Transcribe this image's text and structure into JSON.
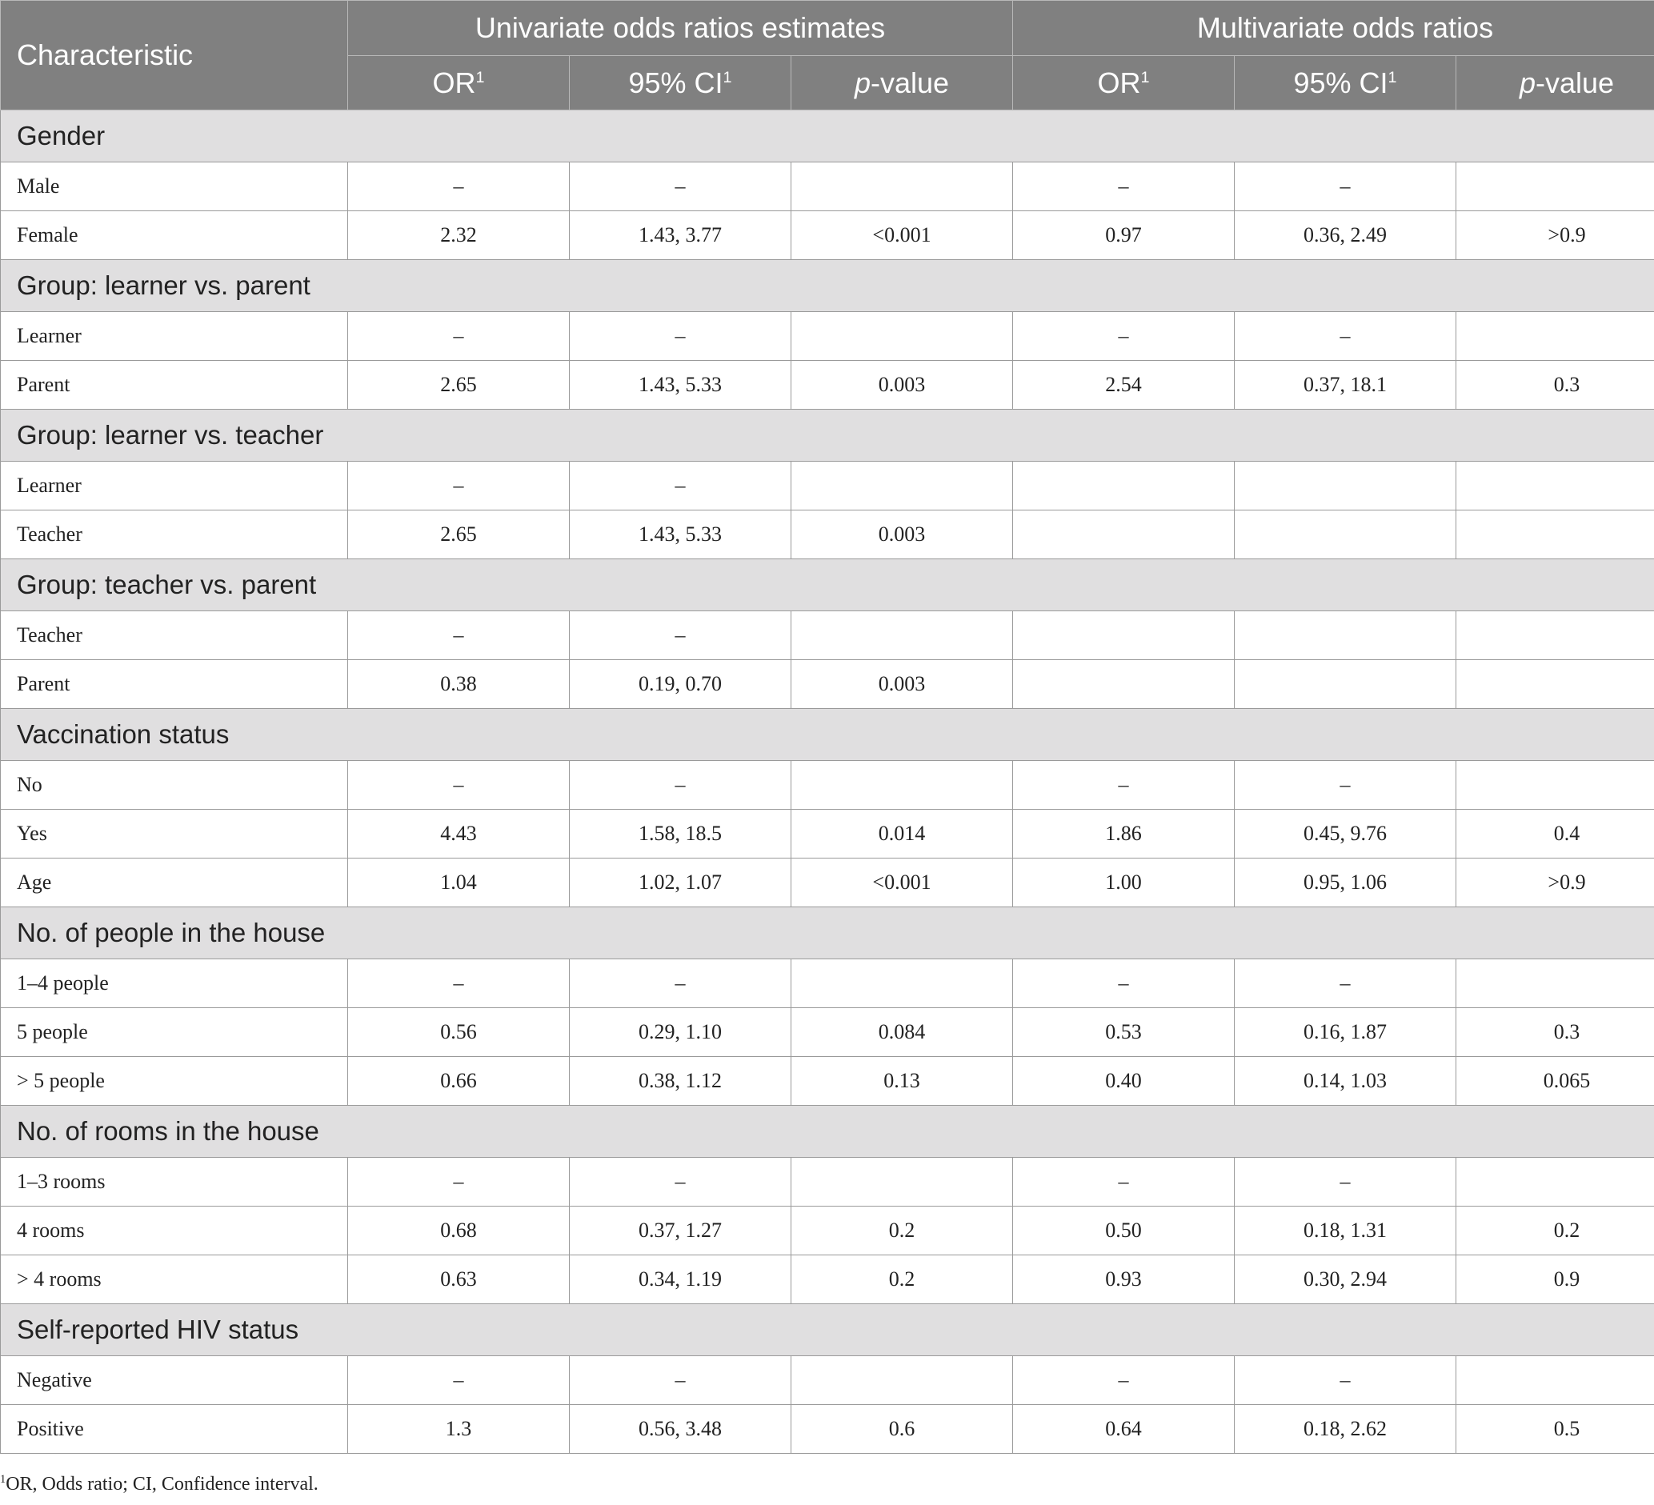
{
  "header": {
    "characteristic": "Characteristic",
    "univariate_group": "Univariate odds ratios estimates",
    "multivariate_group": "Multivariate odds ratios",
    "or_label": "OR",
    "ci_label": "95% CI",
    "footnote_marker": "1",
    "p_italic": "p",
    "p_rest": "-value"
  },
  "sections": [
    {
      "title": "Gender",
      "rows": [
        {
          "label": "Male",
          "values": [
            "–",
            "–",
            "",
            "–",
            "–",
            ""
          ]
        },
        {
          "label": "Female",
          "values": [
            "2.32",
            "1.43, 3.77",
            "<0.001",
            "0.97",
            "0.36, 2.49",
            ">0.9"
          ]
        }
      ]
    },
    {
      "title": "Group: learner vs. parent",
      "rows": [
        {
          "label": "Learner",
          "values": [
            "–",
            "–",
            "",
            "–",
            "–",
            ""
          ]
        },
        {
          "label": "Parent",
          "values": [
            "2.65",
            "1.43, 5.33",
            "0.003",
            "2.54",
            "0.37, 18.1",
            "0.3"
          ]
        }
      ]
    },
    {
      "title": "Group: learner vs. teacher",
      "rows": [
        {
          "label": "Learner",
          "values": [
            "–",
            "–",
            "",
            "",
            "",
            ""
          ]
        },
        {
          "label": "Teacher",
          "values": [
            "2.65",
            "1.43, 5.33",
            "0.003",
            "",
            "",
            ""
          ]
        }
      ]
    },
    {
      "title": "Group: teacher vs. parent",
      "rows": [
        {
          "label": "Teacher",
          "values": [
            "–",
            "–",
            "",
            "",
            "",
            ""
          ]
        },
        {
          "label": "Parent",
          "values": [
            "0.38",
            "0.19, 0.70",
            "0.003",
            "",
            "",
            ""
          ]
        }
      ]
    },
    {
      "title": "Vaccination status",
      "rows": [
        {
          "label": "No",
          "values": [
            "–",
            "–",
            "",
            "–",
            "–",
            ""
          ]
        },
        {
          "label": "Yes",
          "values": [
            "4.43",
            "1.58, 18.5",
            "0.014",
            "1.86",
            "0.45, 9.76",
            "0.4"
          ]
        },
        {
          "label": "Age",
          "values": [
            "1.04",
            "1.02, 1.07",
            "<0.001",
            "1.00",
            "0.95, 1.06",
            ">0.9"
          ]
        }
      ]
    },
    {
      "title": "No. of people in the house",
      "rows": [
        {
          "label": "1–4 people",
          "values": [
            "–",
            "–",
            "",
            "–",
            "–",
            ""
          ]
        },
        {
          "label": "5 people",
          "values": [
            "0.56",
            "0.29, 1.10",
            "0.084",
            "0.53",
            "0.16, 1.87",
            "0.3"
          ]
        },
        {
          "label": "> 5 people",
          "values": [
            "0.66",
            "0.38, 1.12",
            "0.13",
            "0.40",
            "0.14, 1.03",
            "0.065"
          ]
        }
      ]
    },
    {
      "title": "No. of rooms in the house",
      "rows": [
        {
          "label": "1–3 rooms",
          "values": [
            "–",
            "–",
            "",
            "–",
            "–",
            ""
          ]
        },
        {
          "label": "4 rooms",
          "values": [
            "0.68",
            "0.37, 1.27",
            "0.2",
            "0.50",
            "0.18, 1.31",
            "0.2"
          ]
        },
        {
          "label": "> 4 rooms",
          "values": [
            "0.63",
            "0.34, 1.19",
            "0.2",
            "0.93",
            "0.30, 2.94",
            "0.9"
          ]
        }
      ]
    },
    {
      "title": "Self-reported HIV status",
      "rows": [
        {
          "label": "Negative",
          "values": [
            "–",
            "–",
            "",
            "–",
            "–",
            ""
          ]
        },
        {
          "label": "Positive",
          "values": [
            "1.3",
            "0.56, 3.48",
            "0.6",
            "0.64",
            "0.18, 2.62",
            "0.5"
          ]
        }
      ]
    }
  ],
  "footnote": {
    "marker": "1",
    "text": "OR, Odds ratio; CI, Confidence interval."
  }
}
